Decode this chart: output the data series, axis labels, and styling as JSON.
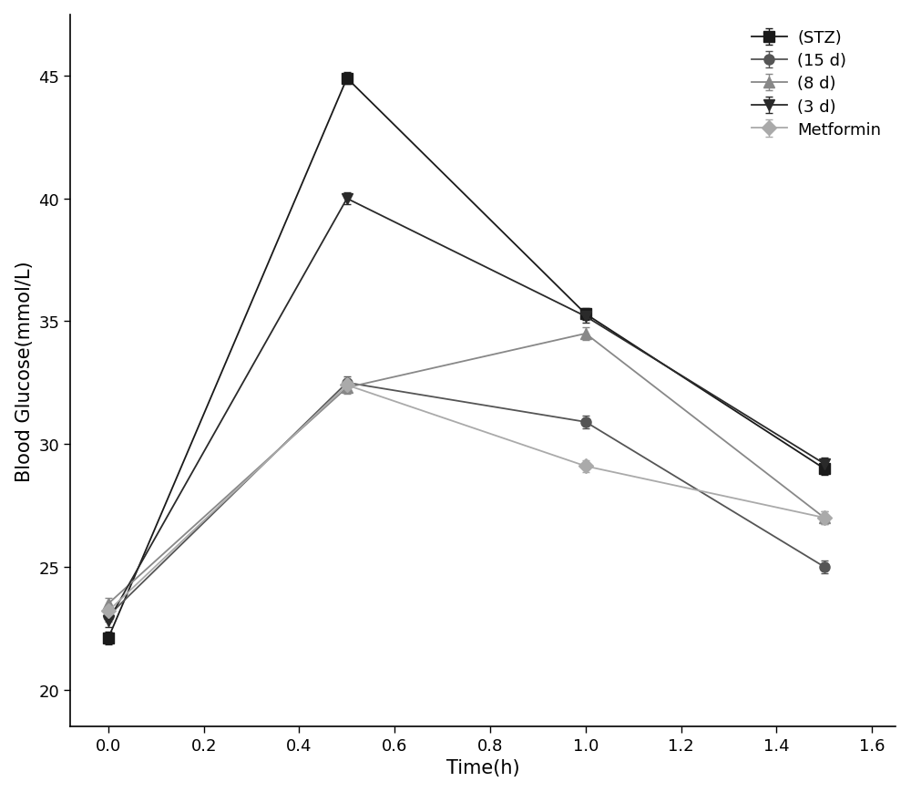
{
  "x": [
    0.0,
    0.5,
    1.0,
    1.5
  ],
  "series": [
    {
      "label": "(STZ)",
      "y": [
        22.1,
        44.9,
        35.3,
        29.0
      ],
      "yerr": [
        0.25,
        0.25,
        0.25,
        0.25
      ],
      "color": "#1a1a1a",
      "marker": "s",
      "markersize": 8,
      "linewidth": 1.3,
      "linestyle": "-"
    },
    {
      "label": "(15 d)",
      "y": [
        23.0,
        32.5,
        30.9,
        25.0
      ],
      "yerr": [
        0.25,
        0.25,
        0.25,
        0.25
      ],
      "color": "#555555",
      "marker": "o",
      "markersize": 8,
      "linewidth": 1.3,
      "linestyle": "-"
    },
    {
      "label": "(8 d)",
      "y": [
        23.5,
        32.3,
        34.5,
        27.0
      ],
      "yerr": [
        0.25,
        0.25,
        0.25,
        0.25
      ],
      "color": "#888888",
      "marker": "^",
      "markersize": 8,
      "linewidth": 1.3,
      "linestyle": "-"
    },
    {
      "label": "(3 d)",
      "y": [
        22.8,
        40.0,
        35.2,
        29.2
      ],
      "yerr": [
        0.25,
        0.25,
        0.25,
        0.25
      ],
      "color": "#2a2a2a",
      "marker": "v",
      "markersize": 8,
      "linewidth": 1.3,
      "linestyle": "-"
    },
    {
      "label": "Metformin",
      "y": [
        23.2,
        32.4,
        29.1,
        27.0
      ],
      "yerr": [
        0.25,
        0.25,
        0.25,
        0.25
      ],
      "color": "#aaaaaa",
      "marker": "D",
      "markersize": 8,
      "linewidth": 1.3,
      "linestyle": "-"
    }
  ],
  "xlabel": "Time(h)",
  "ylabel": "Blood Glucose(mmol/L)",
  "xlim": [
    -0.08,
    1.65
  ],
  "ylim": [
    18.5,
    47.5
  ],
  "yticks": [
    20,
    25,
    30,
    35,
    40,
    45
  ],
  "xticks": [
    0.0,
    0.2,
    0.4,
    0.6,
    0.8,
    1.0,
    1.2,
    1.4,
    1.6
  ],
  "legend_loc": "upper right",
  "background_color": "#ffffff",
  "figsize": [
    10.0,
    8.7
  ],
  "dpi": 100
}
